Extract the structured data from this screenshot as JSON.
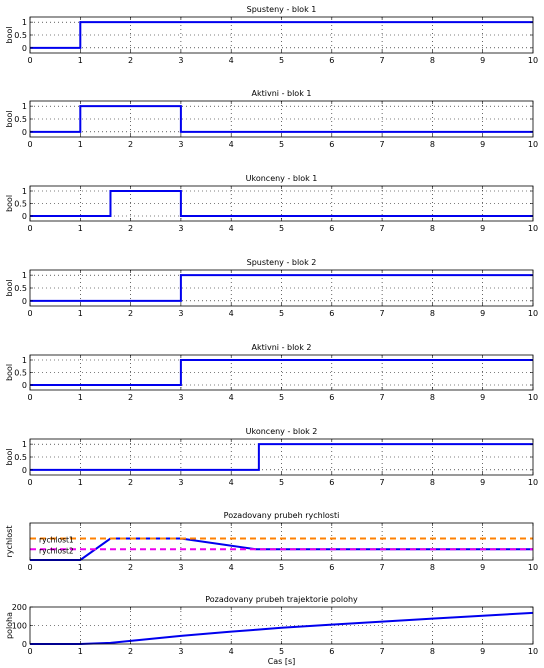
{
  "chart_data": [
    {
      "type": "line",
      "title": "Spusteny - blok 1",
      "xlabel": "",
      "ylabel": "bool",
      "xlim": [
        0,
        10
      ],
      "ylim": [
        -0.2,
        1.2
      ],
      "xticks": [
        "0",
        "1",
        "2",
        "3",
        "4",
        "5",
        "6",
        "7",
        "8",
        "9",
        "10"
      ],
      "yticks": [
        "0",
        "0.5",
        "1"
      ],
      "ytick_values": [
        0,
        0.5,
        1
      ],
      "grid": true,
      "series": [
        {
          "color": "#0000ee",
          "style": "solid",
          "x": [
            0,
            1,
            1,
            10
          ],
          "y": [
            0,
            0,
            1,
            1
          ]
        }
      ]
    },
    {
      "type": "line",
      "title": "Aktivni - blok 1",
      "xlabel": "",
      "ylabel": "bool",
      "xlim": [
        0,
        10
      ],
      "ylim": [
        -0.2,
        1.2
      ],
      "xticks": [
        "0",
        "1",
        "2",
        "3",
        "4",
        "5",
        "6",
        "7",
        "8",
        "9",
        "10"
      ],
      "yticks": [
        "0",
        "0.5",
        "1"
      ],
      "ytick_values": [
        0,
        0.5,
        1
      ],
      "grid": true,
      "series": [
        {
          "color": "#0000ee",
          "style": "solid",
          "x": [
            0,
            1,
            1,
            3,
            3,
            10
          ],
          "y": [
            0,
            0,
            1,
            1,
            0,
            0
          ]
        }
      ]
    },
    {
      "type": "line",
      "title": "Ukonceny - blok 1",
      "xlabel": "",
      "ylabel": "bool",
      "xlim": [
        0,
        10
      ],
      "ylim": [
        -0.2,
        1.2
      ],
      "xticks": [
        "0",
        "1",
        "2",
        "3",
        "4",
        "5",
        "6",
        "7",
        "8",
        "9",
        "10"
      ],
      "yticks": [
        "0",
        "0.5",
        "1"
      ],
      "ytick_values": [
        0,
        0.5,
        1
      ],
      "grid": true,
      "series": [
        {
          "color": "#0000ee",
          "style": "solid",
          "x": [
            0,
            1.6,
            1.6,
            3,
            3,
            10
          ],
          "y": [
            0,
            0,
            1,
            1,
            0,
            0
          ]
        }
      ]
    },
    {
      "type": "line",
      "title": "Spusteny - blok 2",
      "xlabel": "",
      "ylabel": "bool",
      "xlim": [
        0,
        10
      ],
      "ylim": [
        -0.2,
        1.2
      ],
      "xticks": [
        "0",
        "1",
        "2",
        "3",
        "4",
        "5",
        "6",
        "7",
        "8",
        "9",
        "10"
      ],
      "yticks": [
        "0",
        "0.5",
        "1"
      ],
      "ytick_values": [
        0,
        0.5,
        1
      ],
      "grid": true,
      "series": [
        {
          "color": "#0000ee",
          "style": "solid",
          "x": [
            0,
            3,
            3,
            10
          ],
          "y": [
            0,
            0,
            1,
            1
          ]
        }
      ]
    },
    {
      "type": "line",
      "title": "Aktivni - blok 2",
      "xlabel": "",
      "ylabel": "bool",
      "xlim": [
        0,
        10
      ],
      "ylim": [
        -0.2,
        1.2
      ],
      "xticks": [
        "0",
        "1",
        "2",
        "3",
        "4",
        "5",
        "6",
        "7",
        "8",
        "9",
        "10"
      ],
      "yticks": [
        "0",
        "0.5",
        "1"
      ],
      "ytick_values": [
        0,
        0.5,
        1
      ],
      "grid": true,
      "series": [
        {
          "color": "#0000ee",
          "style": "solid",
          "x": [
            0,
            3,
            3,
            10
          ],
          "y": [
            0,
            0,
            1,
            1
          ]
        }
      ]
    },
    {
      "type": "line",
      "title": "Ukonceny - blok 2",
      "xlabel": "",
      "ylabel": "bool",
      "xlim": [
        0,
        10
      ],
      "ylim": [
        -0.2,
        1.2
      ],
      "xticks": [
        "0",
        "1",
        "2",
        "3",
        "4",
        "5",
        "6",
        "7",
        "8",
        "9",
        "10"
      ],
      "yticks": [
        "0",
        "0.5",
        "1"
      ],
      "ytick_values": [
        0,
        0.5,
        1
      ],
      "grid": true,
      "series": [
        {
          "color": "#0000ee",
          "style": "solid",
          "x": [
            0,
            4.55,
            4.55,
            10
          ],
          "y": [
            0,
            0,
            1,
            1
          ]
        }
      ]
    },
    {
      "type": "line",
      "title": "Pozadovany prubeh rychlosti",
      "xlabel": "",
      "ylabel": "rychlost",
      "xlim": [
        0,
        10
      ],
      "ylim": [
        0,
        1
      ],
      "xticks": [
        "0",
        "1",
        "2",
        "3",
        "4",
        "5",
        "6",
        "7",
        "8",
        "9",
        "10"
      ],
      "yticks": [],
      "ytick_values": [],
      "grid": true,
      "annotations": [
        "rychlost1",
        "rychlost2"
      ],
      "series": [
        {
          "color": "#0000ee",
          "style": "solid",
          "x": [
            0,
            1,
            1.6,
            3,
            4.5,
            10
          ],
          "y": [
            0,
            0,
            0.58,
            0.58,
            0.29,
            0.29
          ]
        },
        {
          "color": "#ff8000",
          "style": "dashed",
          "x": [
            0,
            10
          ],
          "y": [
            0.58,
            0.58
          ]
        },
        {
          "color": "#ee00ee",
          "style": "dashed",
          "x": [
            0,
            10
          ],
          "y": [
            0.29,
            0.29
          ]
        }
      ]
    },
    {
      "type": "line",
      "title": "Pozadovany prubeh trajektorie polohy",
      "xlabel": "Cas [s]",
      "ylabel": "poloha",
      "xlim": [
        0,
        10
      ],
      "ylim": [
        0,
        200
      ],
      "xticks": [
        "0",
        "1",
        "2",
        "3",
        "4",
        "5",
        "6",
        "7",
        "8",
        "9",
        "10"
      ],
      "yticks": [
        "0",
        "100",
        "200"
      ],
      "ytick_values": [
        0,
        100,
        200
      ],
      "grid": true,
      "series": [
        {
          "color": "#0000ee",
          "style": "solid",
          "x": [
            0,
            1,
            1.6,
            2,
            3,
            4,
            4.5,
            5,
            6,
            7,
            8,
            9,
            10
          ],
          "y": [
            0,
            0,
            6,
            17,
            44,
            67,
            77,
            88,
            105,
            121,
            137,
            153,
            168
          ]
        }
      ]
    }
  ]
}
